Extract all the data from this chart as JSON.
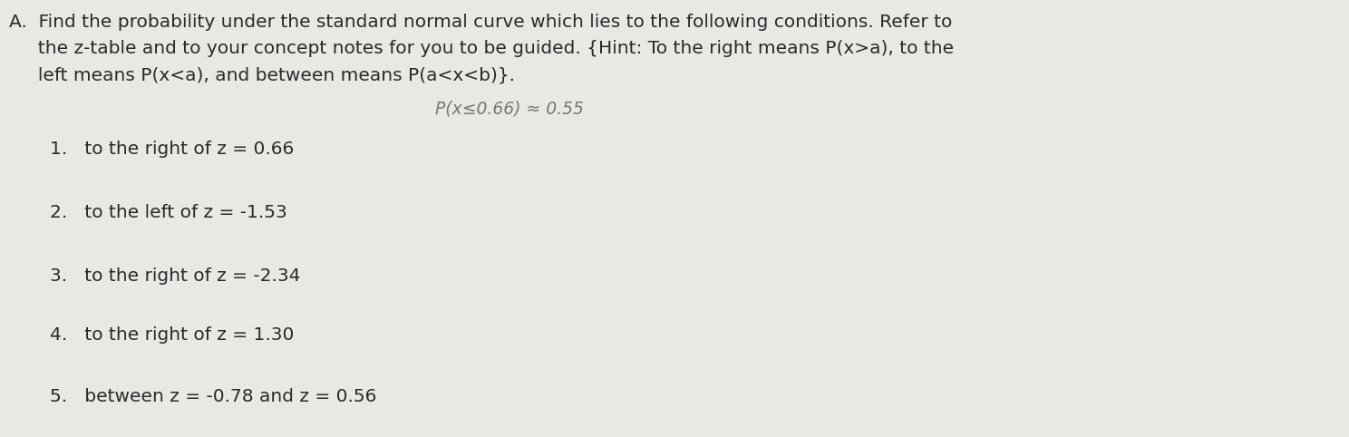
{
  "background_color": "#e8e8e4",
  "title_line1": "A.  Find the probability under the standard normal curve which lies to the following conditions. Refer to",
  "title_line2": "     the z-table and to your concept notes for you to be guided. {Hint: To the right means P(x>a), to the",
  "title_line3": "     left means P(x<a), and between means P(a<x<b)}.",
  "handwritten_note": "P(x≤0.66) ≈ 0.55",
  "items": [
    "1.   to the right of z = 0.66",
    "2.   to the left of z = -1.53",
    "3.   to the right of z = -2.34",
    "4.   to the right of z = 1.30",
    "5.   between z = -0.78 and z = 0.56"
  ],
  "text_color": "#2a2a2a",
  "handwritten_color": "#777777",
  "title_fontsize": 14.5,
  "item_fontsize": 14.5,
  "handwritten_fontsize": 13.5
}
